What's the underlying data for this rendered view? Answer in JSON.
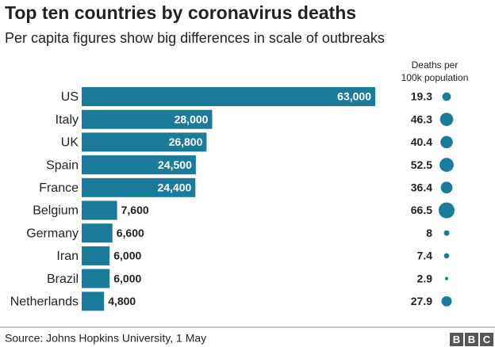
{
  "chart_data": {
    "type": "bar",
    "title": "Top ten countries by coronavirus deaths",
    "subtitle": "Per capita figures show big differences in scale of outbreaks",
    "categories": [
      "US",
      "Italy",
      "UK",
      "Spain",
      "France",
      "Belgium",
      "Germany",
      "Iran",
      "Brazil",
      "Netherlands"
    ],
    "values": [
      63000,
      28000,
      26800,
      24500,
      24400,
      7600,
      6600,
      6000,
      6000,
      4800
    ],
    "value_labels": [
      "63,000",
      "28,000",
      "26,800",
      "24,500",
      "24,400",
      "7,600",
      "6,600",
      "6,000",
      "6,000",
      "4,800"
    ],
    "color": "#1b7b9b",
    "per_capita": {
      "title": [
        "Deaths per",
        "100k population"
      ],
      "values": [
        19.3,
        46.3,
        40.4,
        52.5,
        36.4,
        66.5,
        8,
        7.4,
        2.9,
        27.9
      ],
      "color": "#1b7b9b"
    },
    "source": "Source: Johns Hopkins University, 1 May",
    "logo": [
      "B",
      "B",
      "C"
    ]
  }
}
